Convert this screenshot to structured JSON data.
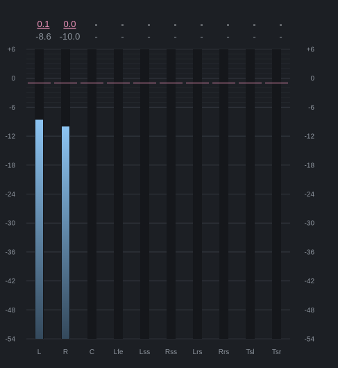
{
  "scale": {
    "ticks": [
      6,
      0,
      -6,
      -12,
      -18,
      -24,
      -30,
      -36,
      -42,
      -48,
      -54
    ],
    "labels": [
      "+6",
      "0",
      "-6",
      "-12",
      "-18",
      "-24",
      "-30",
      "-36",
      "-42",
      "-48",
      "-54"
    ],
    "max_db": 6,
    "min_db": -54
  },
  "channels": [
    {
      "name": "L",
      "peak": "0.1",
      "level": "-8.6",
      "level_db": -8.6,
      "peak_db": 0.1
    },
    {
      "name": "R",
      "peak": "0.0",
      "level": "-10.0",
      "level_db": -10.0,
      "peak_db": 0.0
    },
    {
      "name": "C",
      "peak": "-",
      "level": "-",
      "level_db": null,
      "peak_db": null
    },
    {
      "name": "Lfe",
      "peak": "-",
      "level": "-",
      "level_db": null,
      "peak_db": null
    },
    {
      "name": "Lss",
      "peak": "-",
      "level": "-",
      "level_db": null,
      "peak_db": null
    },
    {
      "name": "Rss",
      "peak": "-",
      "level": "-",
      "level_db": null,
      "peak_db": null
    },
    {
      "name": "Lrs",
      "peak": "-",
      "level": "-",
      "level_db": null,
      "peak_db": null
    },
    {
      "name": "Rrs",
      "peak": "-",
      "level": "-",
      "level_db": null,
      "peak_db": null
    },
    {
      "name": "Tsl",
      "peak": "-",
      "level": "-",
      "level_db": null,
      "peak_db": null
    },
    {
      "name": "Tsr",
      "peak": "-",
      "level": "-",
      "level_db": null,
      "peak_db": null
    }
  ],
  "reference_db": -1,
  "colors": {
    "background": "#1c1f24",
    "track": "#15171b",
    "bar_top": "#8cc4f2",
    "bar_bottom": "#34495c",
    "peak_line": "#e88fb4",
    "peak_text": "#e890b6",
    "text": "#8c939c",
    "grid": "#3a3f47"
  }
}
